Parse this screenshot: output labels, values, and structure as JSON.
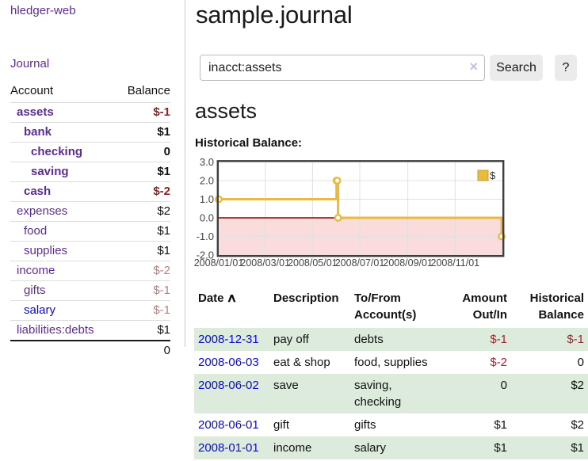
{
  "sidebar": {
    "app_title": "hledger-web",
    "journal_link": "Journal",
    "accounts_table": {
      "account_header": "Account",
      "balance_header": "Balance",
      "rows": [
        {
          "name": "assets",
          "level": 1,
          "bold": true,
          "balance": "$-1",
          "balance_class": "neg-strong",
          "link_class": "purple"
        },
        {
          "name": "bank",
          "level": 2,
          "bold": true,
          "balance": "$1",
          "balance_class": "",
          "link_class": "purple"
        },
        {
          "name": "checking",
          "level": 3,
          "bold": true,
          "balance": "0",
          "balance_class": "",
          "link_class": "purple"
        },
        {
          "name": "saving",
          "level": 3,
          "bold": true,
          "balance": "$1",
          "balance_class": "",
          "link_class": "purple"
        },
        {
          "name": "cash",
          "level": 2,
          "bold": true,
          "balance": "$-2",
          "balance_class": "neg-strong",
          "link_class": "purple"
        },
        {
          "name": "expenses",
          "level": 1,
          "bold": false,
          "balance": "$2",
          "balance_class": "",
          "link_class": "purple"
        },
        {
          "name": "food",
          "level": 2,
          "bold": false,
          "balance": "$1",
          "balance_class": "",
          "link_class": "purple"
        },
        {
          "name": "supplies",
          "level": 2,
          "bold": false,
          "balance": "$1",
          "balance_class": "",
          "link_class": "purple"
        },
        {
          "name": "income",
          "level": 1,
          "bold": false,
          "balance": "$-2",
          "balance_class": "neg-muted",
          "link_class": "purple"
        },
        {
          "name": "gifts",
          "level": 2,
          "bold": false,
          "balance": "$-1",
          "balance_class": "neg-muted",
          "link_class": "purple"
        },
        {
          "name": "salary",
          "level": 2,
          "bold": false,
          "balance": "$-1",
          "balance_class": "neg-muted",
          "link_class": "blue"
        },
        {
          "name": "liabilities:debts",
          "level": 1,
          "bold": false,
          "balance": "$1",
          "balance_class": "",
          "link_class": "purple"
        }
      ],
      "total": "0"
    }
  },
  "main": {
    "title": "sample.journal",
    "search": {
      "query": "inacct:assets",
      "clear_icon": "×",
      "search_button": "Search",
      "help_button": "?"
    },
    "account_heading": "assets",
    "chart_title": "Historical Balance:"
  },
  "chart_data": {
    "type": "line",
    "title": "Historical Balance",
    "step": true,
    "x": [
      "2008-01-01",
      "2008-06-01",
      "2008-06-02",
      "2008-06-03",
      "2008-12-31"
    ],
    "y": [
      1,
      2,
      2,
      0,
      -1
    ],
    "x_ticks": [
      "2008/01/01",
      "2008/03/01",
      "2008/05/01",
      "2008/07/01",
      "2008/09/01",
      "2008/11/01"
    ],
    "y_ticks": [
      "3.0",
      "2.0",
      "1.0",
      "0.0",
      "-1.0",
      "-2.0"
    ],
    "xrange": [
      "2008-01-01",
      "2009-01-01"
    ],
    "ylim": [
      -2,
      3
    ],
    "legend": {
      "label": "$",
      "position": "top-right"
    },
    "grid": true,
    "colors": {
      "series": "#e9ba3e",
      "marker_fill": "#ffffff",
      "negative_region": "#fbdcdc",
      "zero_line": "#8b0000",
      "grid": "#e0e0e0",
      "border": "#3f3f3f",
      "axis_labels": "#444444"
    }
  },
  "register_table": {
    "headers": {
      "date": "Date",
      "sort_indicator": "∧",
      "description": "Description",
      "tofrom": "To/From Account(s)",
      "amount": "Amount Out/In",
      "balance": "Historical Balance"
    },
    "rows": [
      {
        "date": "2008-12-31",
        "description": "pay off",
        "accounts": "debts",
        "amount": "$-1",
        "amount_neg": true,
        "balance": "$-1",
        "balance_neg": true
      },
      {
        "date": "2008-06-03",
        "description": "eat & shop",
        "accounts": "food, supplies",
        "amount": "$-2",
        "amount_neg": true,
        "balance": "0",
        "balance_neg": false
      },
      {
        "date": "2008-06-02",
        "description": "save",
        "accounts": "saving, checking",
        "amount": "0",
        "amount_neg": false,
        "balance": "$2",
        "balance_neg": false
      },
      {
        "date": "2008-06-01",
        "description": "gift",
        "accounts": "gifts",
        "amount": "$1",
        "amount_neg": false,
        "balance": "$2",
        "balance_neg": false
      },
      {
        "date": "2008-01-01",
        "description": "income",
        "accounts": "salary",
        "amount": "$1",
        "amount_neg": false,
        "balance": "$1",
        "balance_neg": false
      }
    ]
  }
}
